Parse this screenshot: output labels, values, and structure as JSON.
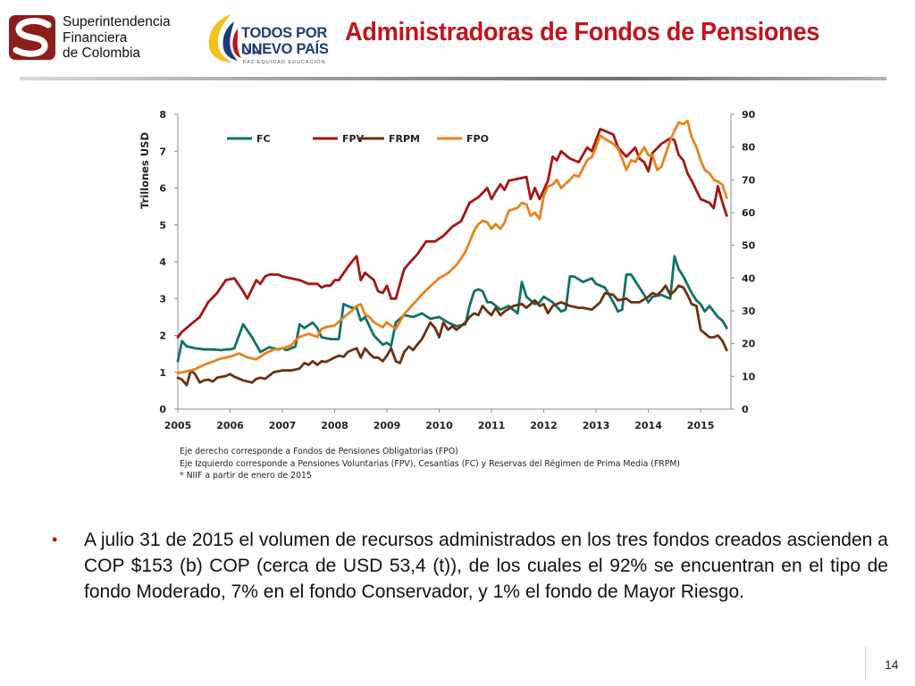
{
  "header": {
    "org_logo_lines": [
      "Superintendencia",
      "Financiera",
      "de Colombia"
    ],
    "gov_logo_line1": "TODOS POR UN",
    "gov_logo_line2": "NUEVO PAÍS",
    "gov_logo_tagline": "PAZ  EQUIDAD  EDUCACIÓN",
    "title": "Administradoras de Fondos de Pensiones"
  },
  "colors": {
    "title": "#c0141c",
    "FC": "#127066",
    "FPV": "#a51515",
    "FRPM": "#6a320f",
    "FPO": "#e8821d"
  },
  "chart_data": {
    "type": "line",
    "y_left_label": "Trillones USD",
    "y_left_range": [
      0,
      8
    ],
    "y_left_ticks": [
      "0",
      "1",
      "2",
      "3",
      "4",
      "5",
      "6",
      "7",
      "8"
    ],
    "y_right_range": [
      0,
      90
    ],
    "y_right_ticks": [
      "0",
      "10",
      "20",
      "30",
      "40",
      "50",
      "60",
      "70",
      "80",
      "90"
    ],
    "x_range": [
      2005,
      2015.58
    ],
    "x_ticks": [
      "2005",
      "2006",
      "2007",
      "2008",
      "2009",
      "2010",
      "2011",
      "2012",
      "2013",
      "2014",
      "2015"
    ],
    "legend_position": "top",
    "grid": false,
    "series": [
      {
        "name": "FC",
        "axis": "left",
        "x": [
          2005.0,
          2005.08,
          2005.17,
          2005.33,
          2005.5,
          2005.67,
          2005.83,
          2005.92,
          2006.0,
          2006.08,
          2006.25,
          2006.42,
          2006.5,
          2006.58,
          2006.75,
          2006.92,
          2007.0,
          2007.08,
          2007.25,
          2007.33,
          2007.42,
          2007.58,
          2007.67,
          2007.75,
          2007.92,
          2008.0,
          2008.08,
          2008.17,
          2008.33,
          2008.42,
          2008.5,
          2008.58,
          2008.75,
          2008.92,
          2009.0,
          2009.08,
          2009.17,
          2009.33,
          2009.5,
          2009.67,
          2009.83,
          2010.0,
          2010.17,
          2010.33,
          2010.5,
          2010.58,
          2010.67,
          2010.75,
          2010.83,
          2010.92,
          2011.0,
          2011.17,
          2011.33,
          2011.5,
          2011.58,
          2011.67,
          2011.83,
          2011.92,
          2012.0,
          2012.17,
          2012.33,
          2012.42,
          2012.5,
          2012.58,
          2012.75,
          2012.92,
          2013.0,
          2013.17,
          2013.33,
          2013.42,
          2013.5,
          2013.58,
          2013.67,
          2013.83,
          2013.92,
          2014.0,
          2014.08,
          2014.25,
          2014.33,
          2014.42,
          2014.5,
          2014.58,
          2014.67,
          2014.83,
          2014.92,
          2015.0,
          2015.08,
          2015.17,
          2015.33,
          2015.42,
          2015.5
        ],
        "y": [
          1.3,
          1.85,
          1.7,
          1.65,
          1.62,
          1.62,
          1.6,
          1.62,
          1.62,
          1.65,
          2.3,
          1.95,
          1.75,
          1.55,
          1.68,
          1.62,
          1.65,
          1.6,
          1.7,
          2.3,
          2.2,
          2.35,
          2.2,
          1.95,
          1.9,
          1.9,
          1.9,
          2.85,
          2.75,
          2.75,
          2.4,
          2.5,
          2.0,
          1.75,
          1.8,
          1.72,
          2.35,
          2.55,
          2.5,
          2.6,
          2.45,
          2.5,
          2.35,
          2.25,
          2.3,
          2.8,
          3.2,
          3.25,
          3.2,
          2.9,
          2.9,
          2.7,
          2.8,
          2.6,
          3.45,
          3.05,
          2.85,
          2.9,
          3.05,
          2.9,
          2.65,
          2.7,
          3.6,
          3.6,
          3.45,
          3.55,
          3.4,
          3.3,
          2.9,
          2.65,
          2.7,
          3.65,
          3.65,
          3.3,
          3.1,
          2.9,
          3.05,
          3.1,
          3.05,
          3.0,
          4.15,
          3.8,
          3.6,
          3.15,
          2.95,
          2.85,
          2.65,
          2.8,
          2.5,
          2.4,
          2.2
        ]
      },
      {
        "name": "FPV",
        "axis": "left",
        "x": [
          2005.0,
          2005.08,
          2005.25,
          2005.42,
          2005.58,
          2005.75,
          2005.92,
          2006.08,
          2006.25,
          2006.33,
          2006.5,
          2006.58,
          2006.67,
          2006.75,
          2006.92,
          2007.0,
          2007.17,
          2007.33,
          2007.5,
          2007.67,
          2007.75,
          2007.83,
          2007.92,
          2008.0,
          2008.08,
          2008.25,
          2008.33,
          2008.42,
          2008.5,
          2008.58,
          2008.75,
          2008.83,
          2008.92,
          2009.0,
          2009.08,
          2009.17,
          2009.33,
          2009.42,
          2009.58,
          2009.75,
          2009.92,
          2010.08,
          2010.25,
          2010.42,
          2010.58,
          2010.75,
          2010.92,
          2011.0,
          2011.08,
          2011.17,
          2011.25,
          2011.33,
          2011.5,
          2011.67,
          2011.75,
          2011.83,
          2011.92,
          2012.08,
          2012.17,
          2012.25,
          2012.33,
          2012.5,
          2012.67,
          2012.83,
          2012.92,
          2013.08,
          2013.17,
          2013.33,
          2013.42,
          2013.58,
          2013.75,
          2013.83,
          2013.92,
          2014.0,
          2014.08,
          2014.25,
          2014.42,
          2014.5,
          2014.58,
          2014.67,
          2014.75,
          2014.83,
          2015.0,
          2015.17,
          2015.25,
          2015.33,
          2015.42,
          2015.5
        ],
        "y": [
          1.95,
          2.1,
          2.3,
          2.5,
          2.9,
          3.15,
          3.5,
          3.55,
          3.2,
          3.0,
          3.5,
          3.4,
          3.6,
          3.65,
          3.65,
          3.6,
          3.55,
          3.5,
          3.4,
          3.4,
          3.3,
          3.35,
          3.35,
          3.5,
          3.5,
          3.85,
          4.0,
          4.15,
          3.5,
          3.7,
          3.5,
          3.2,
          3.15,
          3.35,
          3.0,
          3.0,
          3.8,
          3.95,
          4.2,
          4.55,
          4.55,
          4.7,
          4.95,
          5.1,
          5.6,
          5.75,
          6.0,
          5.7,
          5.9,
          6.1,
          5.95,
          6.2,
          6.25,
          6.3,
          5.7,
          6.0,
          5.7,
          6.2,
          6.85,
          6.75,
          7.0,
          6.8,
          6.7,
          7.1,
          7.0,
          7.6,
          7.55,
          7.45,
          7.1,
          6.85,
          7.1,
          6.8,
          6.7,
          6.45,
          6.95,
          7.2,
          7.35,
          7.3,
          6.9,
          6.75,
          6.4,
          6.2,
          5.7,
          5.6,
          5.45,
          6.05,
          5.6,
          5.25
        ]
      },
      {
        "name": "FRPM",
        "axis": "left",
        "x": [
          2005.0,
          2005.08,
          2005.17,
          2005.25,
          2005.33,
          2005.42,
          2005.5,
          2005.58,
          2005.67,
          2005.75,
          2005.92,
          2006.0,
          2006.08,
          2006.25,
          2006.42,
          2006.5,
          2006.58,
          2006.67,
          2006.83,
          2007.0,
          2007.17,
          2007.33,
          2007.42,
          2007.5,
          2007.58,
          2007.67,
          2007.75,
          2007.83,
          2008.0,
          2008.08,
          2008.17,
          2008.25,
          2008.33,
          2008.42,
          2008.5,
          2008.58,
          2008.67,
          2008.75,
          2008.83,
          2008.92,
          2009.0,
          2009.08,
          2009.17,
          2009.25,
          2009.33,
          2009.42,
          2009.5,
          2009.58,
          2009.67,
          2009.83,
          2009.92,
          2010.0,
          2010.08,
          2010.17,
          2010.25,
          2010.33,
          2010.5,
          2010.58,
          2010.67,
          2010.75,
          2010.83,
          2010.92,
          2011.0,
          2011.08,
          2011.17,
          2011.25,
          2011.42,
          2011.58,
          2011.67,
          2011.83,
          2011.92,
          2012.0,
          2012.08,
          2012.17,
          2012.33,
          2012.5,
          2012.67,
          2012.75,
          2012.92,
          2013.0,
          2013.08,
          2013.17,
          2013.33,
          2013.42,
          2013.58,
          2013.67,
          2013.83,
          2014.0,
          2014.08,
          2014.17,
          2014.25,
          2014.33,
          2014.42,
          2014.5,
          2014.58,
          2014.67,
          2014.75,
          2014.83,
          2014.92,
          2015.0,
          2015.17,
          2015.25,
          2015.33,
          2015.42,
          2015.5
        ],
        "y": [
          0.85,
          0.8,
          0.65,
          1.05,
          0.95,
          0.72,
          0.78,
          0.8,
          0.75,
          0.85,
          0.9,
          0.95,
          0.88,
          0.78,
          0.72,
          0.82,
          0.85,
          0.82,
          1.0,
          1.05,
          1.05,
          1.1,
          1.25,
          1.2,
          1.3,
          1.2,
          1.3,
          1.28,
          1.4,
          1.45,
          1.42,
          1.55,
          1.6,
          1.65,
          1.4,
          1.65,
          1.5,
          1.4,
          1.4,
          1.3,
          1.45,
          1.65,
          1.3,
          1.25,
          1.55,
          1.7,
          1.6,
          1.75,
          1.9,
          2.35,
          2.2,
          1.95,
          2.35,
          2.15,
          2.25,
          2.15,
          2.35,
          2.5,
          2.6,
          2.55,
          2.8,
          2.65,
          2.55,
          2.75,
          2.55,
          2.65,
          2.8,
          2.85,
          2.75,
          2.95,
          2.8,
          2.85,
          2.6,
          2.8,
          2.9,
          2.8,
          2.75,
          2.75,
          2.7,
          2.8,
          2.9,
          3.15,
          3.1,
          2.95,
          3.0,
          2.9,
          2.9,
          3.05,
          3.15,
          3.1,
          3.2,
          3.35,
          3.1,
          3.2,
          3.35,
          3.3,
          3.1,
          2.85,
          2.8,
          2.15,
          1.95,
          1.95,
          2.0,
          1.85,
          1.6
        ]
      },
      {
        "name": "FPO",
        "axis": "right",
        "x": [
          2005.0,
          2005.17,
          2005.33,
          2005.5,
          2005.67,
          2005.83,
          2006.0,
          2006.17,
          2006.33,
          2006.5,
          2006.67,
          2006.83,
          2007.0,
          2007.17,
          2007.25,
          2007.33,
          2007.5,
          2007.67,
          2007.75,
          2007.83,
          2008.0,
          2008.17,
          2008.33,
          2008.42,
          2008.5,
          2008.58,
          2008.67,
          2008.75,
          2008.92,
          2009.0,
          2009.08,
          2009.17,
          2009.33,
          2009.5,
          2009.67,
          2009.83,
          2010.0,
          2010.17,
          2010.33,
          2010.42,
          2010.5,
          2010.58,
          2010.67,
          2010.75,
          2010.83,
          2010.92,
          2011.0,
          2011.08,
          2011.17,
          2011.25,
          2011.33,
          2011.5,
          2011.58,
          2011.67,
          2011.75,
          2011.83,
          2011.92,
          2012.0,
          2012.08,
          2012.17,
          2012.25,
          2012.33,
          2012.5,
          2012.58,
          2012.67,
          2012.83,
          2012.92,
          2013.0,
          2013.08,
          2013.17,
          2013.33,
          2013.42,
          2013.5,
          2013.58,
          2013.67,
          2013.75,
          2013.83,
          2013.92,
          2014.0,
          2014.08,
          2014.17,
          2014.25,
          2014.42,
          2014.5,
          2014.58,
          2014.67,
          2014.75,
          2014.83,
          2014.92,
          2015.0,
          2015.08,
          2015.17,
          2015.25,
          2015.33,
          2015.42,
          2015.5
        ],
        "y": [
          11,
          11.5,
          12.2,
          13.5,
          14.5,
          15.5,
          16,
          17,
          15.8,
          15.2,
          17,
          18.2,
          18.5,
          19.5,
          21,
          22,
          23,
          22,
          24.5,
          25,
          25.5,
          28,
          30,
          31.5,
          32,
          29,
          28,
          26.5,
          25,
          26.5,
          25.5,
          24.5,
          29,
          32,
          35,
          37.5,
          40,
          41.5,
          44,
          46,
          48,
          51,
          54.5,
          56.5,
          57.5,
          57,
          55,
          56.5,
          55,
          57,
          60.5,
          61.5,
          63,
          62.5,
          59,
          60,
          58,
          65,
          68,
          68.5,
          70,
          67.5,
          70,
          71.5,
          71,
          76,
          77,
          80,
          83.5,
          82.5,
          81,
          79.5,
          76.5,
          73,
          76,
          75.5,
          77.5,
          80,
          77.5,
          77.5,
          73,
          74,
          82,
          85,
          87.5,
          87,
          88,
          83,
          80,
          76,
          73,
          72,
          70,
          69.5,
          68.5,
          64.5
        ]
      }
    ],
    "notes": [
      "Eje derecho corresponde a Fondos de Pensiones Obligatorias (FPO)",
      "Eje Izquierdo corresponde a Pensiones Voluntarias (FPV), Cesantías  (FC) y Reservas del  Régimen de Prima Media (FRPM)",
      "* NIIF a partir de enero de 2015"
    ]
  },
  "body_text": "A julio 31 de 2015 el volumen de recursos administrados en los tres fondos creados ascienden a COP $153 (b) COP (cerca de USD  53,4 (t)), de los cuales el 92% se encuentran en el tipo de fondo Moderado, 7% en el fondo Conservador, y 1% el fondo de Mayor Riesgo.",
  "bullet_char": "•",
  "page_number": "14"
}
